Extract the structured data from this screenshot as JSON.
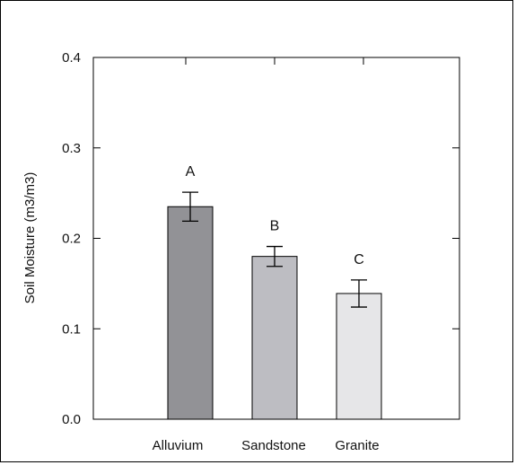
{
  "chart_data": {
    "type": "bar",
    "title": "",
    "xlabel": "",
    "ylabel": "Soil Moisture (m3/m3)",
    "categories": [
      "Alluvium",
      "Sandstone",
      "Granite"
    ],
    "values": [
      0.235,
      0.18,
      0.139
    ],
    "errors": [
      0.016,
      0.011,
      0.015
    ],
    "significance_labels": [
      "A",
      "B",
      "C"
    ],
    "bar_colors": [
      "#929296",
      "#bdbdc2",
      "#e6e6e8"
    ],
    "ylim": [
      0.0,
      0.4
    ],
    "yticks": [
      0.0,
      0.1,
      0.2,
      0.3,
      0.4
    ],
    "ytick_labels": [
      "0.0",
      "0.1",
      "0.2",
      "0.3",
      "0.4"
    ],
    "grid": false,
    "legend": "none"
  }
}
